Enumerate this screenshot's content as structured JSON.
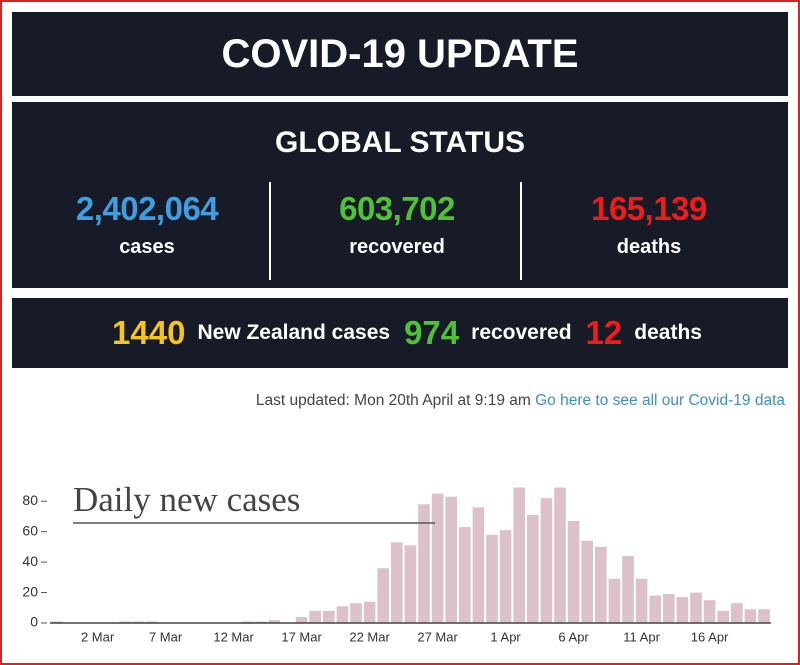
{
  "header": {
    "title": "COVID-19 UPDATE"
  },
  "global": {
    "title": "GLOBAL STATUS",
    "stats": [
      {
        "value": "2,402,064",
        "label": "cases"
      },
      {
        "value": "603,702",
        "label": "recovered"
      },
      {
        "value": "165,139",
        "label": "deaths"
      }
    ]
  },
  "nz": {
    "stats": [
      {
        "value": "1440",
        "label": "New Zealand cases"
      },
      {
        "value": "974",
        "label": "recovered"
      },
      {
        "value": "12",
        "label": "deaths"
      }
    ]
  },
  "footer": {
    "last_updated": "Last updated: Mon 20th April at 9:19 am",
    "link": "Go here to see all our Covid-19 data"
  },
  "chart_data": {
    "type": "bar",
    "title": "Daily new cases",
    "categories": [
      null,
      null,
      null,
      "2 Mar",
      null,
      null,
      null,
      null,
      "7 Mar",
      null,
      null,
      null,
      null,
      "12 Mar",
      null,
      null,
      null,
      null,
      "17 Mar",
      null,
      null,
      null,
      null,
      "22 Mar",
      null,
      null,
      null,
      null,
      "27 Mar",
      null,
      null,
      null,
      null,
      "1 Apr",
      null,
      null,
      null,
      null,
      "6 Apr",
      null,
      null,
      null,
      null,
      "11 Apr",
      null,
      null,
      null,
      null,
      "16 Apr",
      null,
      null,
      null,
      null
    ],
    "values": [
      1,
      0,
      0,
      0,
      0,
      1,
      1,
      1,
      0,
      0,
      0,
      0,
      0,
      0,
      1,
      1,
      2,
      0,
      4,
      8,
      8,
      11,
      13,
      14,
      36,
      53,
      51,
      78,
      85,
      83,
      63,
      76,
      58,
      61,
      89,
      71,
      82,
      89,
      67,
      54,
      50,
      29,
      44,
      29,
      18,
      19,
      17,
      20,
      15,
      8,
      13,
      9,
      9
    ],
    "color": "#dcc1c9",
    "ylim": [
      0,
      90
    ],
    "yticks": [
      0,
      20,
      40,
      60,
      80
    ]
  }
}
